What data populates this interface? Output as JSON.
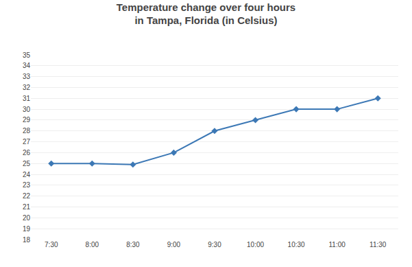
{
  "chart_data": {
    "type": "line",
    "title": "Temperature change over four hours\nin Tampa, Florida (in Celsius)",
    "categories": [
      "7:30",
      "8:00",
      "8:30",
      "9:00",
      "9:30",
      "10:00",
      "10:30",
      "11:00",
      "11:30"
    ],
    "values": [
      25.0,
      25.0,
      24.9,
      26.0,
      28.0,
      29.0,
      30.0,
      30.0,
      31.0
    ],
    "color": "#3C78B5",
    "marker": "diamond",
    "ylim": [
      18,
      35
    ],
    "yticks": [
      18,
      19,
      20,
      21,
      22,
      23,
      24,
      25,
      26,
      27,
      28,
      29,
      30,
      31,
      32,
      33,
      34,
      35
    ],
    "grid": true
  }
}
